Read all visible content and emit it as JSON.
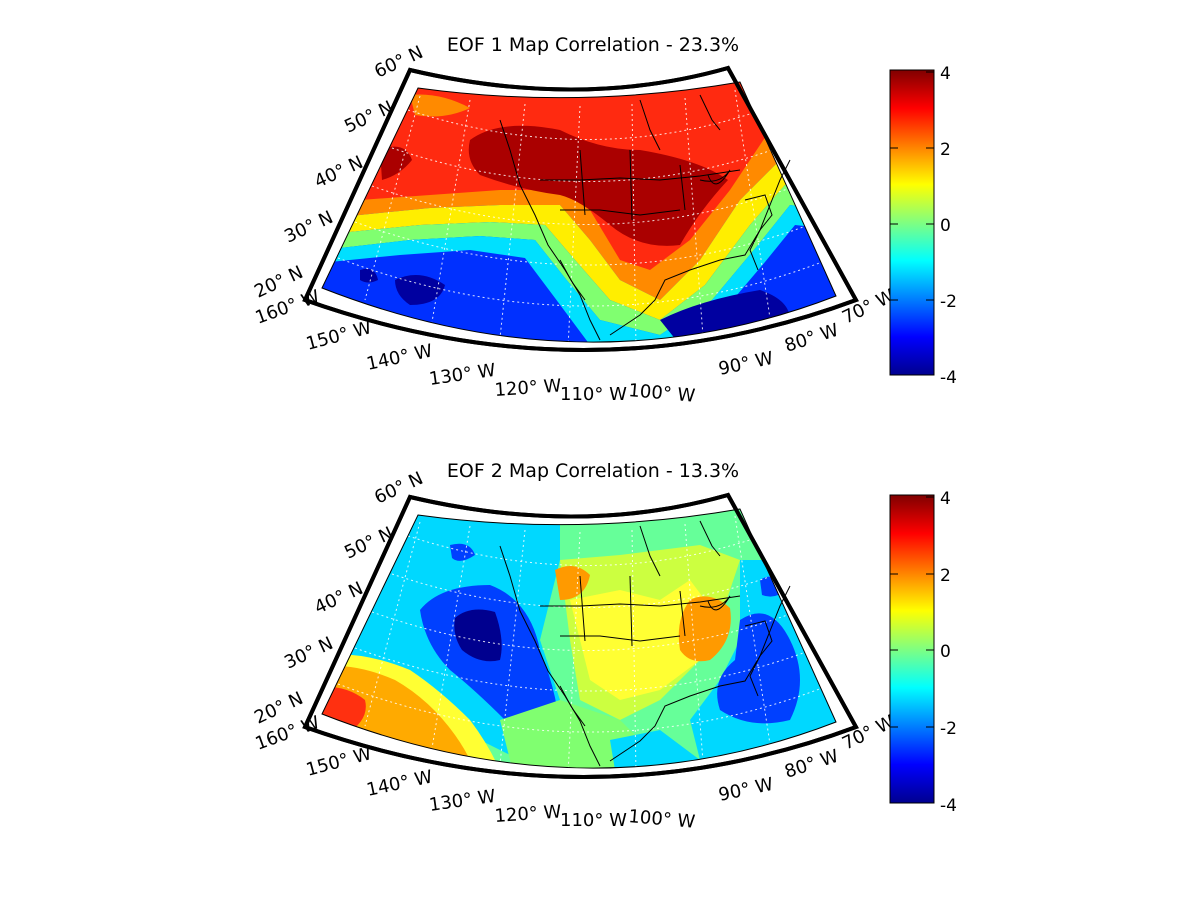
{
  "figure": {
    "panels": [
      {
        "title": "EOF 1 Map Correlation - 23.3%",
        "lat_labels": [
          "20° N",
          "30° N",
          "40° N",
          "50° N",
          "60° N"
        ],
        "lon_labels": [
          "160° W",
          "150° W",
          "140° W",
          "130° W",
          "120° W",
          "110° W",
          "100° W",
          "90° W",
          "80° W",
          "70° W"
        ]
      },
      {
        "title": "EOF 2 Map Correlation - 13.3%",
        "lat_labels": [
          "20° N",
          "30° N",
          "40° N",
          "50° N",
          "60° N"
        ],
        "lon_labels": [
          "160° W",
          "150° W",
          "140° W",
          "130° W",
          "120° W",
          "110° W",
          "100° W",
          "90° W",
          "80° W",
          "70° W"
        ]
      }
    ],
    "colorbar": {
      "range": [
        -4,
        4
      ],
      "ticks": [
        "4",
        "2",
        "0",
        "-2",
        "-4"
      ],
      "colormap": "jet"
    }
  }
}
